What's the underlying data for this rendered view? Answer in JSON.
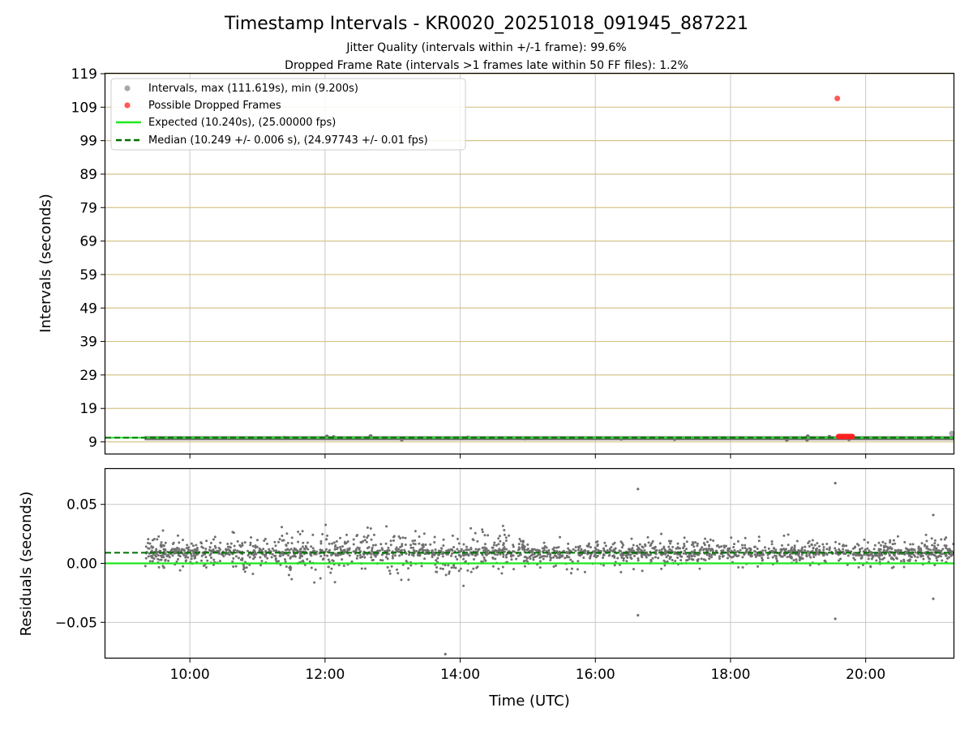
{
  "chart_data": {
    "type": "scatter",
    "title": "Timestamp Intervals - KR0020_20251018_091945_887221",
    "subtitle_1": "Jitter Quality (intervals within +/-1 frame): 99.6%",
    "subtitle_2": "Dropped Frame Rate (intervals >1 frames late within 50 FF files): 1.2%",
    "top": {
      "ylabel": "Intervals (seconds)",
      "ylim": [
        5.5,
        119
      ],
      "yticks": [
        "9",
        "19",
        "29",
        "39",
        "49",
        "59",
        "69",
        "79",
        "89",
        "99",
        "109",
        "119"
      ],
      "expected": 10.24,
      "median": 10.249,
      "max_interval": 111.619,
      "min_interval": 9.2,
      "legend": [
        {
          "label": "Intervals, max (111.619s), min (9.200s)",
          "color": "#a9a9a9",
          "kind": "dot"
        },
        {
          "label": "Possible Dropped Frames",
          "color": "#ff5a5a",
          "kind": "dot"
        },
        {
          "label": "Expected (10.240s), (25.00000 fps)",
          "color": "#1ee81e",
          "kind": "line"
        },
        {
          "label": "Median (10.249 +/- 0.006 s), (24.97743 +/- 0.01 fps)",
          "color": "#007000",
          "kind": "dash"
        }
      ],
      "outlier": {
        "time_h": 19.58,
        "value": 111.619
      },
      "dropped_cluster": {
        "start_h": 19.6,
        "end_h": 19.8,
        "value": 10.6
      }
    },
    "bottom": {
      "ylabel": "Residuals (seconds)",
      "ylim": [
        -0.08,
        0.08
      ],
      "yticks": [
        "0.05",
        "0.00",
        "−0.05"
      ],
      "median_residual": 0.009,
      "expected_residual": 0.0,
      "notable_points": [
        {
          "time_h": 16.63,
          "value": 0.063
        },
        {
          "time_h": 19.55,
          "value": 0.068
        },
        {
          "time_h": 16.63,
          "value": -0.044
        },
        {
          "time_h": 19.55,
          "value": -0.047
        },
        {
          "time_h": 13.78,
          "value": -0.077
        },
        {
          "time_h": 21.0,
          "value": 0.041
        },
        {
          "time_h": 21.0,
          "value": -0.03
        }
      ]
    },
    "xlabel": "Time (UTC)",
    "xlim_hours": [
      8.75,
      21.3
    ],
    "data_start_hour": 9.33,
    "xticks": [
      "10:00",
      "12:00",
      "14:00",
      "16:00",
      "18:00",
      "20:00"
    ],
    "colors": {
      "points": "#707070",
      "legend_points": "#a9a9a9",
      "dropped": "#ff2020",
      "outlier": "#ff5a5a",
      "expected": "#1ee81e",
      "median": "#007000",
      "hgrid_top": "#d4c48a",
      "grid": "#c8c8c8"
    }
  }
}
